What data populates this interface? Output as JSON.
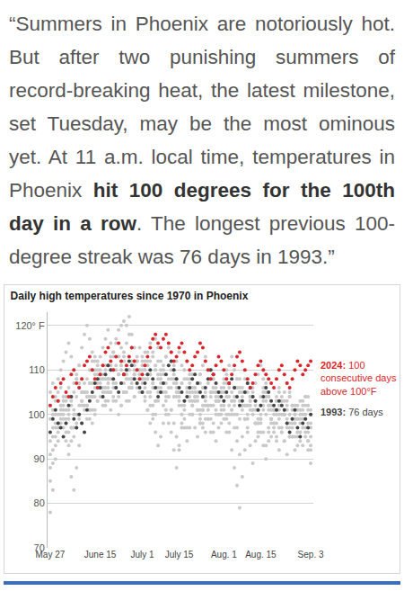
{
  "quote": [
    {
      "text": "“Summers in Phoenix are notoriously hot. But after two punishing summers of record-breaking heat, the latest milestone, set Tuesday, may be the most ominous yet. At 11 a.m. local time, temperatures in Phoenix ",
      "bold": false
    },
    {
      "text": "hit 100 degrees for the 100th day in a row",
      "bold": true
    },
    {
      "text": ". The longest previous 100-degree streak was 76 days in 1993.”",
      "bold": false
    }
  ],
  "chart_data": {
    "type": "scatter",
    "title": "Daily high temperatures since 1970 in Phoenix",
    "marker": "circle",
    "grid": true,
    "categories": [
      "May 27",
      null,
      null,
      null,
      null,
      null,
      null,
      null,
      null,
      null,
      null,
      null,
      null,
      null,
      null,
      null,
      null,
      null,
      null,
      "June 15",
      null,
      null,
      null,
      null,
      null,
      null,
      null,
      null,
      null,
      null,
      null,
      null,
      null,
      null,
      null,
      "July 1",
      null,
      null,
      null,
      null,
      null,
      null,
      null,
      null,
      null,
      null,
      null,
      null,
      null,
      "July 15",
      null,
      null,
      null,
      null,
      null,
      null,
      null,
      null,
      null,
      null,
      null,
      null,
      null,
      null,
      null,
      null,
      "Aug. 1",
      null,
      null,
      null,
      null,
      null,
      null,
      null,
      null,
      null,
      null,
      null,
      null,
      null,
      "Aug. 15",
      null,
      null,
      null,
      null,
      null,
      null,
      null,
      null,
      null,
      null,
      null,
      null,
      null,
      null,
      null,
      null,
      null,
      null,
      "Sep. 3"
    ],
    "ylim": [
      70,
      123
    ],
    "yticks": [
      70,
      80,
      90,
      100,
      110,
      {
        "value": 120,
        "label": "120° F"
      }
    ],
    "series": [
      {
        "color": "#c9c9c9",
        "values": [
          105,
          107,
          104,
          108,
          110,
          112,
          114,
          116,
          113,
          110,
          108,
          111,
          115,
          118,
          120,
          117,
          114,
          112,
          110,
          113,
          115,
          117,
          119,
          116,
          113,
          111,
          109,
          112,
          114,
          116,
          118,
          115,
          112,
          110,
          108,
          110,
          112,
          114,
          116,
          113,
          111,
          109,
          107,
          105,
          103,
          106,
          108,
          110,
          112,
          114,
          111,
          108,
          106,
          104,
          102,
          105,
          107,
          109,
          111,
          113,
          110,
          108,
          106,
          104,
          103,
          105,
          107,
          109,
          111,
          113,
          110,
          108,
          106,
          104,
          102,
          100,
          103,
          105,
          107,
          109,
          111,
          108,
          106,
          104,
          102,
          100,
          98,
          101,
          103,
          105,
          107,
          104,
          102,
          100,
          99,
          101,
          103,
          104,
          102,
          100
        ]
      },
      {
        "color": "#c9c9c9",
        "values": [
          88,
          92,
          95,
          98,
          101,
          103,
          99,
          96,
          94,
          97,
          100,
          102,
          105,
          107,
          104,
          101,
          98,
          100,
          103,
          106,
          108,
          110,
          107,
          105,
          103,
          106,
          109,
          111,
          113,
          110,
          108,
          106,
          104,
          107,
          109,
          111,
          108,
          105,
          102,
          99,
          96,
          93,
          95,
          98,
          101,
          104,
          106,
          108,
          105,
          103,
          100,
          97,
          94,
          97,
          100,
          103,
          105,
          107,
          104,
          102,
          99,
          96,
          98,
          101,
          103,
          105,
          106,
          104,
          102,
          100,
          97,
          94,
          91,
          95,
          99,
          102,
          104,
          106,
          103,
          101,
          99,
          96,
          93,
          96,
          99,
          101,
          103,
          105,
          102,
          100,
          98,
          95,
          97,
          100,
          102,
          100,
          98,
          96,
          94,
          97
        ]
      },
      {
        "color": "#c9c9c9",
        "values": [
          78,
          83,
          90,
          96,
          100,
          102,
          104,
          106,
          103,
          100,
          97,
          99,
          102,
          105,
          108,
          110,
          112,
          109,
          106,
          104,
          102,
          105,
          108,
          111,
          114,
          116,
          113,
          110,
          107,
          105,
          103,
          106,
          109,
          112,
          115,
          113,
          110,
          108,
          105,
          102,
          100,
          103,
          106,
          109,
          107,
          104,
          101,
          98,
          95,
          92,
          97,
          101,
          104,
          107,
          109,
          106,
          103,
          100,
          97,
          99,
          102,
          105,
          108,
          106,
          104,
          101,
          99,
          96,
          100,
          103,
          106,
          108,
          105,
          102,
          99,
          96,
          93,
          89,
          94,
          98,
          102,
          105,
          107,
          104,
          101,
          98,
          95,
          92,
          96,
          100,
          103,
          105,
          102,
          99,
          96,
          94,
          97,
          100,
          98,
          95
        ]
      },
      {
        "color": "#c9c9c9",
        "values": [
          99,
          101,
          103,
          105,
          102,
          100,
          98,
          101,
          104,
          107,
          109,
          111,
          108,
          105,
          102,
          104,
          107,
          110,
          112,
          109,
          106,
          108,
          111,
          113,
          110,
          107,
          104,
          102,
          105,
          108,
          110,
          112,
          109,
          107,
          105,
          108,
          110,
          112,
          109,
          106,
          103,
          105,
          108,
          111,
          113,
          115,
          112,
          109,
          106,
          104,
          107,
          110,
          112,
          109,
          106,
          104,
          101,
          99,
          102,
          105,
          107,
          110,
          108,
          105,
          103,
          106,
          108,
          110,
          107,
          105,
          102,
          100,
          103,
          106,
          108,
          105,
          103,
          100,
          98,
          101,
          104,
          106,
          103,
          101,
          99,
          97,
          100,
          102,
          104,
          101,
          99,
          97,
          95,
          98,
          101,
          103,
          100,
          102,
          104,
          101
        ]
      },
      {
        "color": "#c9c9c9",
        "values": [
          94,
          97,
          100,
          103,
          106,
          104,
          101,
          99,
          102,
          105,
          108,
          106,
          103,
          101,
          104,
          107,
          110,
          113,
          111,
          108,
          105,
          103,
          106,
          110,
          114,
          117,
          119,
          120,
          121,
          120,
          122,
          118,
          115,
          112,
          109,
          105,
          103,
          101,
          104,
          107,
          110,
          108,
          105,
          102,
          100,
          98,
          101,
          104,
          107,
          105,
          102,
          99,
          97,
          100,
          103,
          106,
          104,
          101,
          98,
          96,
          99,
          102,
          105,
          103,
          100,
          98,
          101,
          104,
          106,
          103,
          100,
          97,
          99,
          102,
          105,
          107,
          104,
          101,
          98,
          95,
          98,
          101,
          104,
          102,
          99,
          96,
          94,
          97,
          100,
          103,
          101,
          98,
          95,
          92,
          95,
          98,
          101,
          99,
          96,
          93
        ]
      },
      {
        "color": "#c9c9c9",
        "values": [
          91,
          95,
          98,
          100,
          102,
          99,
          96,
          93,
          97,
          101,
          104,
          107,
          105,
          102,
          99,
          101,
          104,
          106,
          109,
          107,
          104,
          102,
          105,
          108,
          106,
          103,
          100,
          102,
          105,
          108,
          110,
          107,
          104,
          106,
          109,
          107,
          104,
          101,
          98,
          100,
          103,
          106,
          109,
          107,
          104,
          100,
          96,
          92,
          88,
          93,
          98,
          102,
          105,
          103,
          100,
          97,
          95,
          98,
          101,
          104,
          102,
          99,
          96,
          94,
          97,
          100,
          102,
          99,
          96,
          92,
          88,
          84,
          79,
          86,
          92,
          97,
          101,
          104,
          102,
          99,
          96,
          93,
          90,
          94,
          98,
          101,
          103,
          100,
          97,
          94,
          91,
          95,
          99,
          102,
          99,
          96,
          93,
          95,
          92,
          89
        ]
      },
      {
        "color": "#c9c9c9",
        "values": [
          85,
          89,
          93,
          97,
          99,
          97,
          94,
          91,
          86,
          83,
          88,
          93,
          98,
          102,
          105,
          107,
          104,
          101,
          103,
          106,
          109,
          111,
          108,
          105,
          107,
          110,
          113,
          115,
          112,
          109,
          106,
          108,
          111,
          113,
          110,
          108,
          106,
          109,
          112,
          114,
          117,
          115,
          112,
          110,
          113,
          116,
          114,
          111,
          108,
          105,
          107,
          110,
          108,
          105,
          102,
          104,
          107,
          109,
          106,
          103,
          101,
          104,
          106,
          103,
          100,
          102,
          105,
          107,
          104,
          101,
          103,
          106,
          108,
          105,
          102,
          99,
          102,
          104,
          101,
          98,
          100,
          103,
          105,
          102,
          99,
          101,
          104,
          106,
          103,
          100,
          102,
          104,
          101,
          98,
          96,
          99,
          102,
          104,
          101,
          98
        ]
      },
      {
        "color": "#c9c9c9",
        "values": [
          102,
          100,
          97,
          94,
          98,
          101,
          103,
          100,
          97,
          95,
          98,
          100,
          103,
          105,
          102,
          99,
          101,
          104,
          107,
          110,
          108,
          106,
          103,
          101,
          104,
          106,
          109,
          107,
          105,
          103,
          106,
          108,
          110,
          112,
          110,
          112,
          114,
          111,
          109,
          107,
          110,
          112,
          110,
          107,
          105,
          108,
          110,
          107,
          104,
          102,
          100,
          103,
          106,
          108,
          105,
          103,
          101,
          98,
          101,
          104,
          107,
          105,
          102,
          100,
          103,
          105,
          103,
          100,
          98,
          101,
          104,
          106,
          103,
          101,
          99,
          102,
          104,
          101,
          98,
          96,
          99,
          102,
          100,
          97,
          95,
          98,
          101,
          99,
          96,
          94,
          97,
          100,
          98,
          95,
          93,
          96,
          99,
          97,
          94,
          92
        ]
      },
      {
        "color": "#444444",
        "values": [
          96,
          99,
          101,
          98,
          97,
          95,
          98,
          102,
          104,
          99,
          97,
          100,
          98,
          96,
          101,
          103,
          105,
          107,
          108,
          106,
          104,
          109,
          111,
          110,
          108,
          106,
          105,
          107,
          109,
          110,
          112,
          111,
          108,
          107,
          106,
          105,
          107,
          109,
          110,
          108,
          106,
          104,
          105,
          107,
          109,
          111,
          112,
          110,
          108,
          106,
          105,
          103,
          104,
          106,
          108,
          109,
          107,
          105,
          104,
          106,
          108,
          110,
          109,
          107,
          105,
          104,
          103,
          105,
          107,
          108,
          106,
          104,
          102,
          103,
          105,
          107,
          106,
          104,
          103,
          101,
          102,
          104,
          106,
          105,
          103,
          102,
          101,
          103,
          102,
          101,
          98,
          96,
          99,
          101,
          97,
          95,
          98,
          99,
          97,
          100
        ]
      },
      {
        "color": "#d9262b",
        "values": [
          102,
          104,
          106,
          103,
          107,
          108,
          105,
          104,
          109,
          110,
          107,
          106,
          108,
          111,
          112,
          113,
          110,
          108,
          106,
          109,
          111,
          114,
          115,
          112,
          110,
          113,
          116,
          112,
          109,
          111,
          113,
          115,
          112,
          110,
          108,
          109,
          111,
          113,
          115,
          117,
          118,
          116,
          115,
          117,
          118,
          116,
          114,
          112,
          113,
          115,
          116,
          114,
          112,
          110,
          111,
          113,
          114,
          116,
          115,
          112,
          110,
          108,
          109,
          111,
          113,
          112,
          110,
          108,
          107,
          109,
          111,
          113,
          114,
          112,
          110,
          108,
          106,
          107,
          109,
          111,
          112,
          110,
          109,
          108,
          107,
          106,
          108,
          110,
          111,
          109,
          107,
          106,
          108,
          110,
          112,
          111,
          109,
          110,
          111,
          112
        ]
      }
    ],
    "annotations": [
      {
        "lines": [
          "2024: 100",
          "consecutive days",
          "above 100°F"
        ],
        "color": "#d9262b"
      },
      {
        "lines": [
          "1993: 76 days"
        ],
        "color": "#444444"
      }
    ]
  }
}
